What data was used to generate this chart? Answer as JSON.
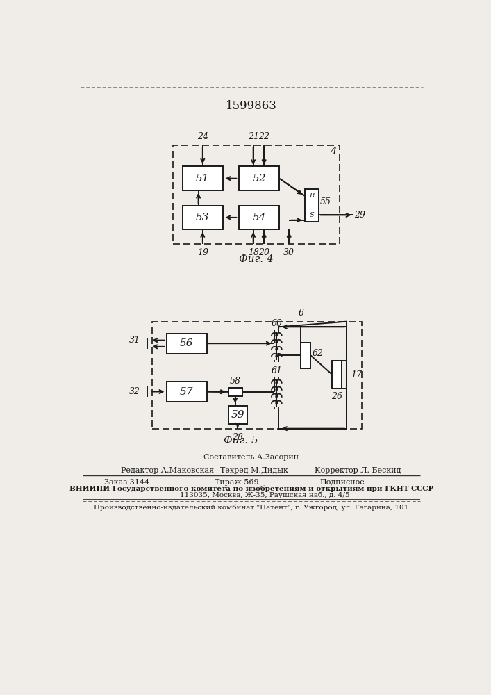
{
  "title": "1599863",
  "fig4_label": "Фиг. 4",
  "fig5_label": "Фиг. 5",
  "background_color": "#f0ede8",
  "line_color": "#1a1a1a",
  "footer_line0": "Составитель А.Засорин",
  "footer_line1a": "Редактор А.Маковская",
  "footer_line1b": "Техред М.Дидык",
  "footer_line1c": "Корректор Л. Бескид",
  "footer_line2a": "Заказ 3144",
  "footer_line2b": "Тираж 569",
  "footer_line2c": "Подписное",
  "footer_line3": "ВНИИПИ Государственного комитета по изобретениям и открытиям при ГКНТ СССР",
  "footer_line4": "            113035, Москва, Ж-35, Раушская наб., д. 4/5",
  "footer_line5": "Производственно-издательский комбинат \"Патент\", г. Ужгород, ул. Гагарина, 101"
}
